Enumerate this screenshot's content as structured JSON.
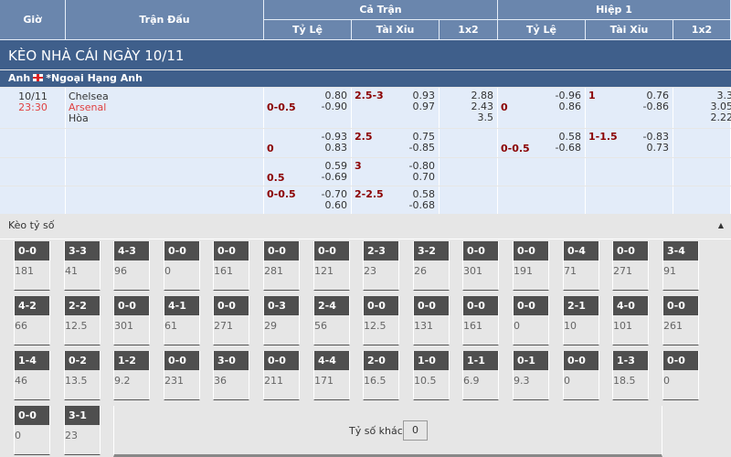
{
  "header": {
    "gio": "Giờ",
    "tran_dau": "Trận Đấu",
    "ca_tran": "Cả Trận",
    "hiep1": "Hiệp 1",
    "ty_le": "Tỷ Lệ",
    "tai_xiu": "Tài Xỉu",
    "x12": "1x2"
  },
  "title": "KÈO NHÀ CÁI NGÀY 10/11",
  "league": {
    "country": "Anh",
    "name": "*Ngoại Hạng Anh",
    "flag_icon": "england-flag-icon"
  },
  "match": {
    "date": "10/11",
    "time": "23:30",
    "home": "Chelsea",
    "away": "Arsenal",
    "draw": "Hòa"
  },
  "rows": [
    {
      "ft_hc": "0-0.5",
      "ft_o1": "0.80",
      "ft_o2": "-0.90",
      "ft_ou": "2.5-3",
      "ft_ou1": "0.93",
      "ft_ou2": "0.97",
      "x1": "2.88",
      "x2": "2.43",
      "x3": "3.5",
      "h1_hc": "0",
      "h1_o1": "-0.96",
      "h1_o2": "0.86",
      "h1_ou": "1",
      "h1_ou1": "0.76",
      "h1_ou2": "-0.86",
      "h1x1": "3.3",
      "h1x2": "3.05",
      "h1x3": "2.22"
    },
    {
      "ft_hc": "0",
      "ft_o1": "-0.93",
      "ft_o2": "0.83",
      "ft_ou": "2.5",
      "ft_ou1": "0.75",
      "ft_ou2": "-0.85",
      "h1_hc": "0-0.5",
      "h1_o1": "0.58",
      "h1_o2": "-0.68",
      "h1_ou": "1-1.5",
      "h1_ou1": "-0.83",
      "h1_ou2": "0.73"
    },
    {
      "ft_hc": "0.5",
      "ft_o1": "0.59",
      "ft_o2": "-0.69",
      "ft_ou": "3",
      "ft_ou1": "-0.80",
      "ft_ou2": "0.70"
    },
    {
      "ft_hc": "0-0.5",
      "ft_o1": "-0.70",
      "ft_o2": "0.60",
      "ft_ou": "2-2.5",
      "ft_ou1": "0.58",
      "ft_ou2": "-0.68"
    }
  ],
  "correct_score": {
    "title": "Kèo tỷ số",
    "collapse_icon": "caret-up-icon",
    "other_label": "Tỷ số khác",
    "other_value": "0",
    "items": [
      [
        "0-0",
        "181"
      ],
      [
        "3-3",
        "41"
      ],
      [
        "4-3",
        "96"
      ],
      [
        "0-0",
        "0"
      ],
      [
        "0-0",
        "161"
      ],
      [
        "0-0",
        "281"
      ],
      [
        "0-0",
        "121"
      ],
      [
        "2-3",
        "23"
      ],
      [
        "3-2",
        "26"
      ],
      [
        "0-0",
        "301"
      ],
      [
        "0-0",
        "191"
      ],
      [
        "0-4",
        "71"
      ],
      [
        "0-0",
        "271"
      ],
      [
        "3-4",
        "91"
      ],
      [
        "4-2",
        "66"
      ],
      [
        "2-2",
        "12.5"
      ],
      [
        "0-0",
        "301"
      ],
      [
        "4-1",
        "61"
      ],
      [
        "0-0",
        "271"
      ],
      [
        "0-3",
        "29"
      ],
      [
        "2-4",
        "56"
      ],
      [
        "0-0",
        "12.5"
      ],
      [
        "0-0",
        "131"
      ],
      [
        "0-0",
        "161"
      ],
      [
        "0-0",
        "0"
      ],
      [
        "2-1",
        "10"
      ],
      [
        "4-0",
        "101"
      ],
      [
        "0-0",
        "261"
      ],
      [
        "1-4",
        "46"
      ],
      [
        "0-2",
        "13.5"
      ],
      [
        "1-2",
        "9.2"
      ],
      [
        "0-0",
        "231"
      ],
      [
        "3-0",
        "36"
      ],
      [
        "0-0",
        "211"
      ],
      [
        "4-4",
        "171"
      ],
      [
        "2-0",
        "16.5"
      ],
      [
        "1-0",
        "10.5"
      ],
      [
        "1-1",
        "6.9"
      ],
      [
        "0-1",
        "9.3"
      ],
      [
        "0-0",
        "0"
      ],
      [
        "1-3",
        "18.5"
      ],
      [
        "0-0",
        "0"
      ],
      [
        "0-0",
        "0"
      ],
      [
        "3-1",
        "23"
      ]
    ]
  }
}
